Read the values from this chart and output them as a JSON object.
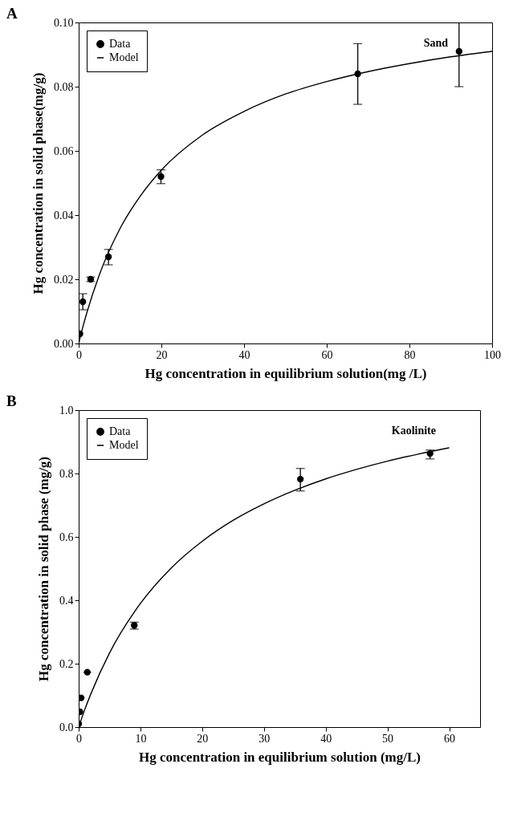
{
  "chart_data": [
    {
      "type": "scatter",
      "title": "A",
      "xlabel": "Hg concentration in equilibrium solution(mg /L)",
      "ylabel": "Hg concentration in solid phase(mg/g)",
      "annotations": [
        "Sand"
      ],
      "xlim": [
        0,
        100
      ],
      "xticks": [
        0,
        20,
        40,
        60,
        80,
        100
      ],
      "ylim": [
        0,
        0.1
      ],
      "yticks": [
        {
          "value": 0,
          "label": "0.00"
        },
        0.02,
        0.04,
        0.06,
        0.08,
        {
          "value": 0.1,
          "label": "0.10"
        }
      ],
      "legend": "top left",
      "grid": false,
      "series": [
        {
          "name": "Data",
          "marker": "circle",
          "color": "#000000",
          "x": [
            0.3,
            1,
            2.9,
            7.2,
            19.9,
            67.5,
            92
          ],
          "values": [
            0.003,
            0.013,
            0.02,
            0.027,
            0.052,
            0.084,
            0.091
          ],
          "errors": [
            null,
            [
              0.0105,
              0.0155
            ],
            [
              0.0193,
              0.0207
            ],
            [
              0.0245,
              0.0293
            ],
            [
              0.0498,
              0.0541
            ],
            [
              0.0745,
              0.0934
            ],
            [
              0.08,
              0.1
            ]
          ]
        },
        {
          "name": "Model",
          "type": "line",
          "color": "#000000",
          "line_style": "solid",
          "x": [
            0,
            1,
            2,
            5,
            10,
            15,
            20,
            30,
            40,
            50,
            60,
            70,
            80,
            90,
            100
          ],
          "values": [
            0,
            0.0051,
            0.0097,
            0.0214,
            0.0358,
            0.0461,
            0.054,
            0.065,
            0.0723,
            0.0777,
            0.0816,
            0.0847,
            0.0872,
            0.0893,
            0.091
          ]
        }
      ]
    },
    {
      "type": "scatter",
      "title": "B",
      "xlabel": "Hg concentration in equilibrium solution (mg/L)",
      "ylabel": "Hg concentration in solid phase (mg/g)",
      "annotations": [
        "Kaolinite"
      ],
      "xlim": [
        0,
        65
      ],
      "xticks": [
        0,
        10,
        20,
        30,
        40,
        50,
        60
      ],
      "ylim": [
        0,
        1
      ],
      "yticks": [
        {
          "value": 0,
          "label": "0.0"
        },
        0.2,
        0.4,
        0.6,
        0.8,
        {
          "value": 1,
          "label": "1.0"
        }
      ],
      "legend": "top left",
      "grid": false,
      "series": [
        {
          "name": "Data",
          "marker": "circle",
          "color": "#000000",
          "x": [
            0,
            0.2,
            0.4,
            1.4,
            9,
            35.9,
            56.9
          ],
          "values": [
            0.01,
            0.048,
            0.092,
            0.173,
            0.321,
            0.782,
            0.863
          ],
          "errors": [
            null,
            null,
            null,
            null,
            [
              0.309,
              0.331
            ],
            [
              0.745,
              0.816
            ],
            [
              0.846,
              0.874
            ]
          ],
          "xerrors": [
            null,
            null,
            0.5,
            0.6,
            null,
            null,
            null
          ]
        },
        {
          "name": "Model",
          "type": "line",
          "color": "#000000",
          "line_style": "solid",
          "x": [
            0,
            1,
            2,
            5,
            10,
            15,
            20,
            25,
            30,
            35,
            40,
            45,
            50,
            55,
            60
          ],
          "values": [
            0,
            0.056,
            0.106,
            0.234,
            0.39,
            0.502,
            0.586,
            0.652,
            0.704,
            0.747,
            0.783,
            0.813,
            0.839,
            0.861,
            0.881
          ]
        }
      ]
    }
  ]
}
